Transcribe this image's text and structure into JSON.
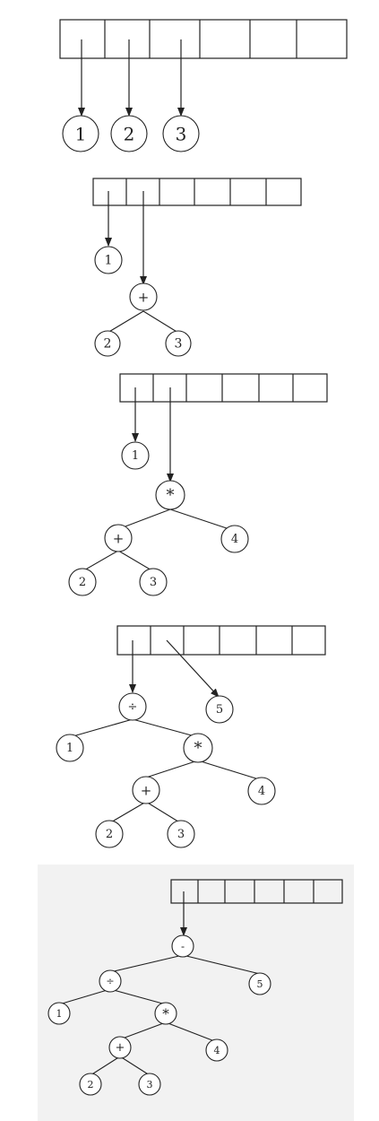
{
  "colors": {
    "stroke": "#222222",
    "stage5_background": "#f2f2f2",
    "operator_text": "#555555",
    "text": "#222222"
  },
  "stages": [
    {
      "nodes": {
        "n1": "1",
        "n2": "2",
        "n3": "3"
      }
    },
    {
      "nodes": {
        "n1": "1",
        "plus": "+",
        "n2": "2",
        "n3": "3"
      }
    },
    {
      "nodes": {
        "n1": "1",
        "times": "*",
        "plus": "+",
        "n4": "4",
        "n2": "2",
        "n3": "3"
      }
    },
    {
      "nodes": {
        "div": "÷",
        "n5": "5",
        "n1": "1",
        "times": "*",
        "plus": "+",
        "n4": "4",
        "n2": "2",
        "n3": "3"
      }
    },
    {
      "nodes": {
        "minus": "-",
        "div": "÷",
        "n5": "5",
        "n1": "1",
        "times": "*",
        "plus": "+",
        "n4": "4",
        "n2": "2",
        "n3": "3"
      }
    }
  ]
}
